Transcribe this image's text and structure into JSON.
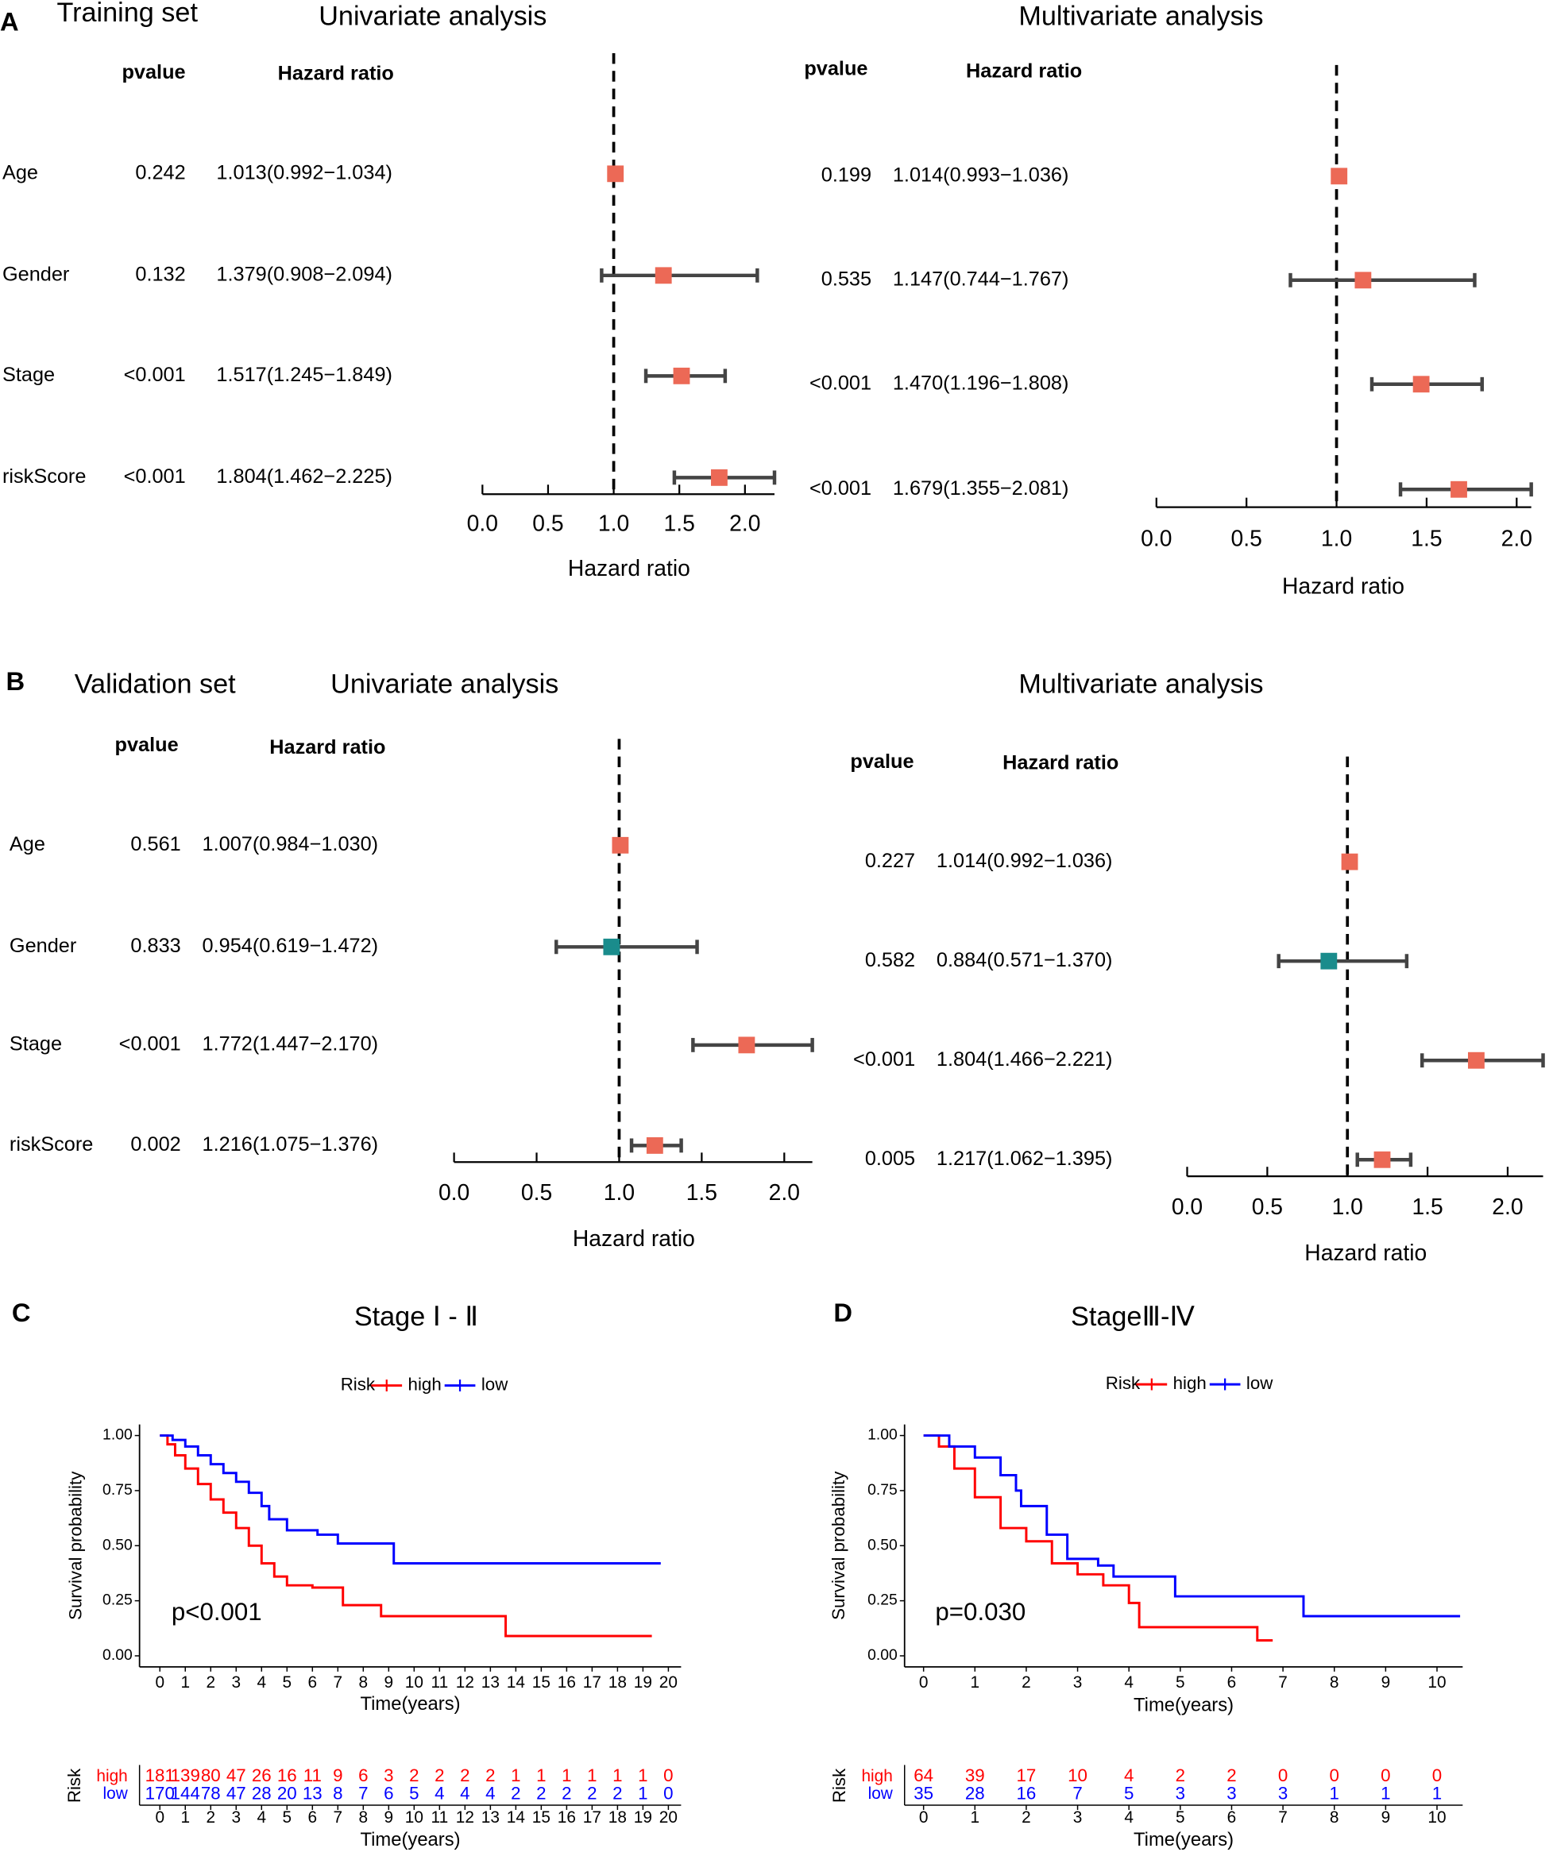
{
  "chart_data": [
    {
      "type": "forest",
      "panel": "A",
      "set_label": "Training set",
      "title": "Univariate analysis",
      "columns": [
        "pvalue",
        "Hazard ratio"
      ],
      "categories": [
        "Age",
        "Gender",
        "Stage",
        "riskScore"
      ],
      "pvalues": [
        "0.242",
        "0.132",
        "<0.001",
        "<0.001"
      ],
      "values": [
        1.013,
        1.379,
        1.517,
        1.804
      ],
      "lower": [
        0.992,
        0.908,
        1.245,
        1.462
      ],
      "upper": [
        1.034,
        2.094,
        1.849,
        2.225
      ],
      "value_labels": [
        "1.013(0.992−1.034)",
        "1.379(0.908−2.094)",
        "1.517(1.245−1.849)",
        "1.804(1.462−2.225)"
      ],
      "colors": [
        "#ec6956",
        "#ec6956",
        "#ec6956",
        "#ec6956"
      ],
      "ref": 1,
      "xlim": [
        0,
        2.225
      ],
      "xticks": [
        {
          "value": 0,
          "label": "0.0"
        },
        {
          "value": 0.5,
          "label": "0.5"
        },
        {
          "value": 1,
          "label": "1.0"
        },
        {
          "value": 1.5,
          "label": "1.5"
        },
        {
          "value": 2,
          "label": "2.0"
        }
      ],
      "xlabel": "Hazard ratio"
    },
    {
      "type": "forest",
      "title": "Multivariate analysis",
      "columns": [
        "pvalue",
        "Hazard ratio"
      ],
      "pvalues": [
        "0.199",
        "0.535",
        "<0.001",
        "<0.001"
      ],
      "values": [
        1.014,
        1.147,
        1.47,
        1.679
      ],
      "lower": [
        0.993,
        0.744,
        1.196,
        1.355
      ],
      "upper": [
        1.036,
        1.767,
        1.808,
        2.081
      ],
      "value_labels": [
        "1.014(0.993−1.036)",
        "1.147(0.744−1.767)",
        "1.470(1.196−1.808)",
        "1.679(1.355−2.081)"
      ],
      "colors": [
        "#ec6956",
        "#ec6956",
        "#ec6956",
        "#ec6956"
      ],
      "ref": 1,
      "xlim": [
        0,
        2.081
      ],
      "xticks": [
        {
          "value": 0,
          "label": "0.0"
        },
        {
          "value": 0.5,
          "label": "0.5"
        },
        {
          "value": 1,
          "label": "1.0"
        },
        {
          "value": 1.5,
          "label": "1.5"
        },
        {
          "value": 2,
          "label": "2.0"
        }
      ],
      "xlabel": "Hazard ratio"
    },
    {
      "type": "forest",
      "panel": "B",
      "set_label": "Validation set",
      "title": "Univariate analysis",
      "columns": [
        "pvalue",
        "Hazard ratio"
      ],
      "categories": [
        "Age",
        "Gender",
        "Stage",
        "riskScore"
      ],
      "pvalues": [
        "0.561",
        "0.833",
        "<0.001",
        "0.002"
      ],
      "values": [
        1.007,
        0.954,
        1.772,
        1.216
      ],
      "lower": [
        0.984,
        0.619,
        1.447,
        1.075
      ],
      "upper": [
        1.03,
        1.472,
        2.17,
        1.376
      ],
      "value_labels": [
        "1.007(0.984−1.030)",
        "0.954(0.619−1.472)",
        "1.772(1.447−2.170)",
        "1.216(1.075−1.376)"
      ],
      "colors": [
        "#ec6956",
        "#1a8c8c",
        "#ec6956",
        "#ec6956"
      ],
      "ref": 1,
      "xlim": [
        0,
        2.17
      ],
      "xticks": [
        {
          "value": 0,
          "label": "0.0"
        },
        {
          "value": 0.5,
          "label": "0.5"
        },
        {
          "value": 1,
          "label": "1.0"
        },
        {
          "value": 1.5,
          "label": "1.5"
        },
        {
          "value": 2,
          "label": "2.0"
        }
      ],
      "xlabel": "Hazard ratio"
    },
    {
      "type": "forest",
      "title": "Multivariate analysis",
      "columns": [
        "pvalue",
        "Hazard ratio"
      ],
      "pvalues": [
        "0.227",
        "0.582",
        "<0.001",
        "0.005"
      ],
      "values": [
        1.014,
        0.884,
        1.804,
        1.217
      ],
      "lower": [
        0.992,
        0.571,
        1.466,
        1.062
      ],
      "upper": [
        1.036,
        1.37,
        2.221,
        1.395
      ],
      "value_labels": [
        "1.014(0.992−1.036)",
        "0.884(0.571−1.370)",
        "1.804(1.466−2.221)",
        "1.217(1.062−1.395)"
      ],
      "colors": [
        "#ec6956",
        "#1a8c8c",
        "#ec6956",
        "#ec6956"
      ],
      "ref": 1,
      "xlim": [
        0,
        2.221
      ],
      "xticks": [
        {
          "value": 0,
          "label": "0.0"
        },
        {
          "value": 0.5,
          "label": "0.5"
        },
        {
          "value": 1,
          "label": "1.0"
        },
        {
          "value": 1.5,
          "label": "1.5"
        },
        {
          "value": 2,
          "label": "2.0"
        }
      ],
      "xlabel": "Hazard ratio"
    },
    {
      "type": "survival",
      "panel": "C",
      "title": "Stage Ⅰ - Ⅱ",
      "legend_title": "Risk",
      "series": [
        {
          "name": "high",
          "color": "#ff0000",
          "x": [
            0,
            0.3,
            0.6,
            1,
            1.5,
            2,
            2.5,
            3,
            3.5,
            4,
            4.5,
            5,
            6,
            7.2,
            8.7,
            13.6,
            19.35
          ],
          "values": [
            1,
            0.96,
            0.91,
            0.85,
            0.78,
            0.71,
            0.65,
            0.58,
            0.5,
            0.42,
            0.36,
            0.32,
            0.31,
            0.23,
            0.18,
            0.09,
            0.09
          ],
          "at_risk": [
            181,
            139,
            80,
            47,
            26,
            16,
            11,
            9,
            6,
            3,
            2,
            2,
            2,
            2,
            1,
            1,
            1,
            1,
            1,
            1,
            0
          ]
        },
        {
          "name": "low",
          "color": "#0000ff",
          "x": [
            0,
            0.5,
            1,
            1.5,
            2,
            2.5,
            3,
            3.5,
            4,
            4.3,
            5,
            6.2,
            7,
            9.2,
            19.7
          ],
          "values": [
            1,
            0.98,
            0.95,
            0.91,
            0.87,
            0.83,
            0.79,
            0.74,
            0.68,
            0.62,
            0.57,
            0.55,
            0.51,
            0.42,
            0.42
          ],
          "at_risk": [
            170,
            144,
            78,
            47,
            28,
            20,
            13,
            8,
            7,
            6,
            5,
            4,
            4,
            4,
            2,
            2,
            2,
            2,
            2,
            1,
            0
          ]
        }
      ],
      "xlim": [
        -0.8,
        20.5
      ],
      "ylim": [
        -0.05,
        1.05
      ],
      "xticks": [
        0,
        1,
        2,
        3,
        4,
        5,
        6,
        7,
        8,
        9,
        10,
        11,
        12,
        13,
        14,
        15,
        16,
        17,
        18,
        19,
        20
      ],
      "yticks": [
        {
          "value": 0,
          "label": "0.00"
        },
        {
          "value": 0.25,
          "label": "0.25"
        },
        {
          "value": 0.5,
          "label": "0.50"
        },
        {
          "value": 0.75,
          "label": "0.75"
        },
        {
          "value": 1,
          "label": "1.00"
        }
      ],
      "xlabel": "Time(years)",
      "ylabel": "Survival probability",
      "annotation": "p<0.001",
      "risk_table_label": "Risk"
    },
    {
      "type": "survival",
      "panel": "D",
      "title": "StageⅢ-Ⅳ",
      "legend_title": "Risk",
      "series": [
        {
          "name": "high",
          "color": "#ff0000",
          "x": [
            0,
            0.3,
            0.6,
            1,
            1.5,
            2,
            2.5,
            3,
            3.5,
            4,
            4.2,
            6.5,
            6.8
          ],
          "values": [
            1,
            0.95,
            0.85,
            0.72,
            0.58,
            0.52,
            0.42,
            0.37,
            0.32,
            0.24,
            0.13,
            0.07,
            0.07
          ],
          "at_risk": [
            64,
            39,
            17,
            10,
            4,
            2,
            2,
            0,
            0,
            0,
            0
          ]
        },
        {
          "name": "low",
          "color": "#0000ff",
          "x": [
            0,
            0.5,
            1,
            1.5,
            1.8,
            1.9,
            2.4,
            2.8,
            3.4,
            3.7,
            4.9,
            7.4,
            10.45
          ],
          "values": [
            1,
            0.95,
            0.9,
            0.82,
            0.75,
            0.68,
            0.55,
            0.44,
            0.41,
            0.36,
            0.27,
            0.18,
            0.18
          ],
          "at_risk": [
            35,
            28,
            16,
            7,
            5,
            3,
            3,
            3,
            1,
            1,
            1
          ]
        }
      ],
      "xlim": [
        -0.37,
        10.5
      ],
      "ylim": [
        -0.05,
        1.05
      ],
      "xticks": [
        0,
        1,
        2,
        3,
        4,
        5,
        6,
        7,
        8,
        9,
        10
      ],
      "yticks": [
        {
          "value": 0,
          "label": "0.00"
        },
        {
          "value": 0.25,
          "label": "0.25"
        },
        {
          "value": 0.5,
          "label": "0.50"
        },
        {
          "value": 0.75,
          "label": "0.75"
        },
        {
          "value": 1,
          "label": "1.00"
        }
      ],
      "xlabel": "Time(years)",
      "ylabel": "Survival probability",
      "annotation": "p=0.030",
      "risk_table_label": "Risk"
    }
  ]
}
